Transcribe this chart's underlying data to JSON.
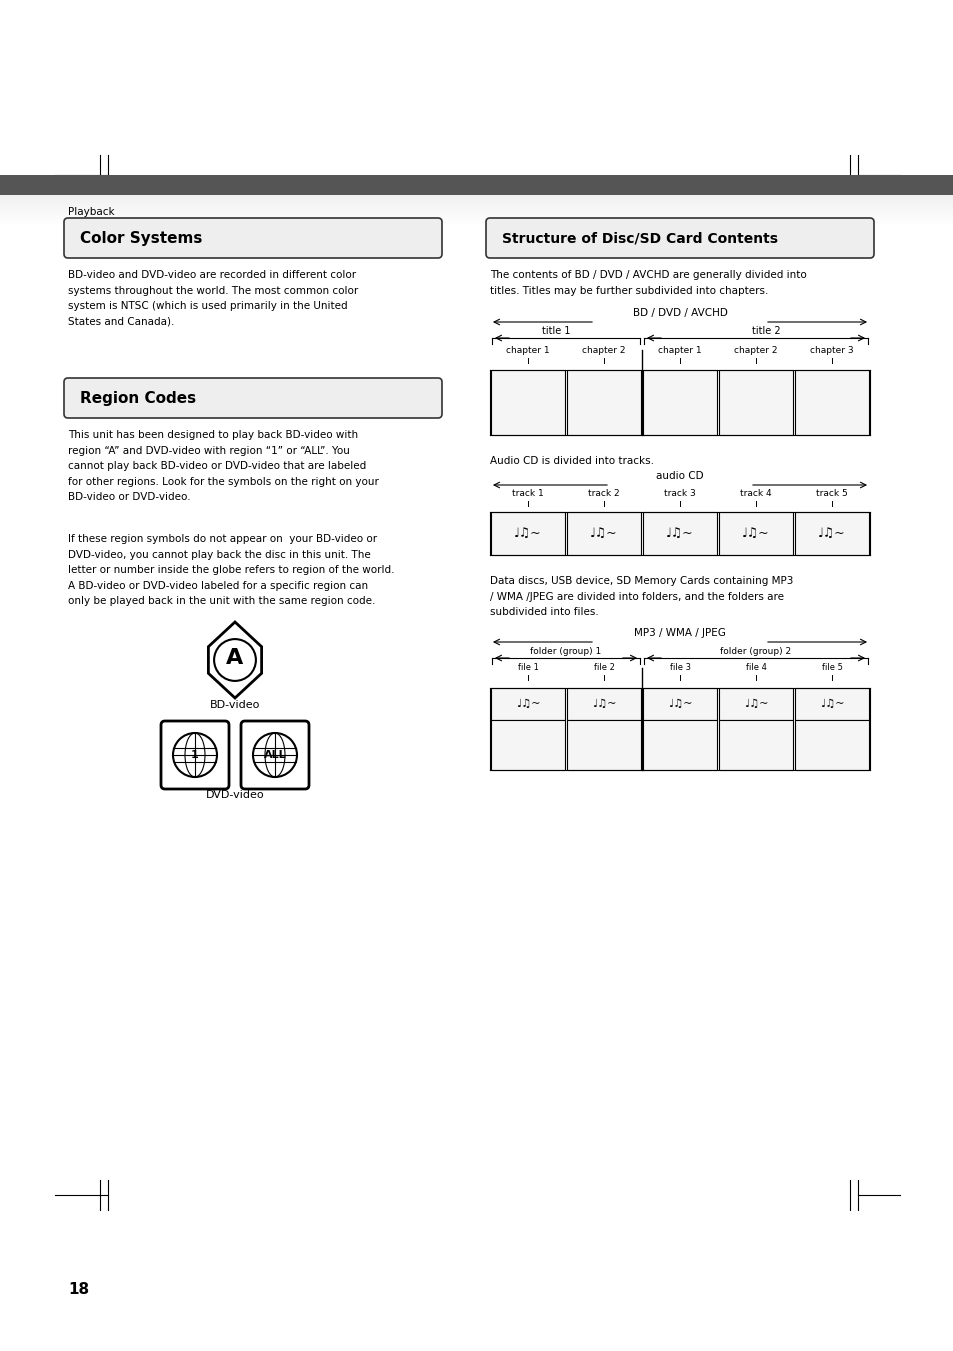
{
  "page_number": "18",
  "header_text": "Playback",
  "header_bar_color": "#555555",
  "background_color": "#ffffff",
  "section1_title": "Color Systems",
  "section1_text": "BD-video and DVD-video are recorded in different color\nsystems throughout the world. The most common color\nsystem is NTSC (which is used primarily in the United\nStates and Canada).",
  "section2_title": "Region Codes",
  "section2_text1": "This unit has been designed to play back BD-video with\nregion “A” and DVD-video with region “1” or “ALL”. You\ncannot play back BD-video or DVD-video that are labeled\nfor other regions. Look for the symbols on the right on your\nBD-video or DVD-video.",
  "section2_text2": "If these region symbols do not appear on  your BD-video or\nDVD-video, you cannot play back the disc in this unit. The\nletter or number inside the globe refers to region of the world.\nA BD-video or DVD-video labeled for a specific region can\nonly be played back in the unit with the same region code.",
  "bd_video_label": "BD-video",
  "dvd_video_label": "DVD-video",
  "right_section_title": "Structure of Disc/SD Card Contents",
  "right_text1": "The contents of BD / DVD / AVCHD are generally divided into\ntitles. Titles may be further subdivided into chapters.",
  "bd_dvd_label": "BD / DVD / AVCHD",
  "title1_label": "title 1",
  "title2_label": "title 2",
  "chapter_labels_bd": [
    "chapter 1",
    "chapter 2",
    "chapter 1",
    "chapter 2",
    "chapter 3"
  ],
  "audio_cd_intro": "Audio CD is divided into tracks.",
  "audio_cd_label": "audio CD",
  "track_labels": [
    "track 1",
    "track 2",
    "track 3",
    "track 4",
    "track 5"
  ],
  "mp3_intro": "Data discs, USB device, SD Memory Cards containing MP3\n/ WMA /JPEG are divided into folders, and the folders are\nsubdivided into files.",
  "mp3_label": "MP3 / WMA / JPEG",
  "folder1_label": "folder (group) 1",
  "folder2_label": "folder (group) 2",
  "file_labels": [
    "file 1",
    "file 2",
    "file 3",
    "file 4",
    "file 5"
  ]
}
